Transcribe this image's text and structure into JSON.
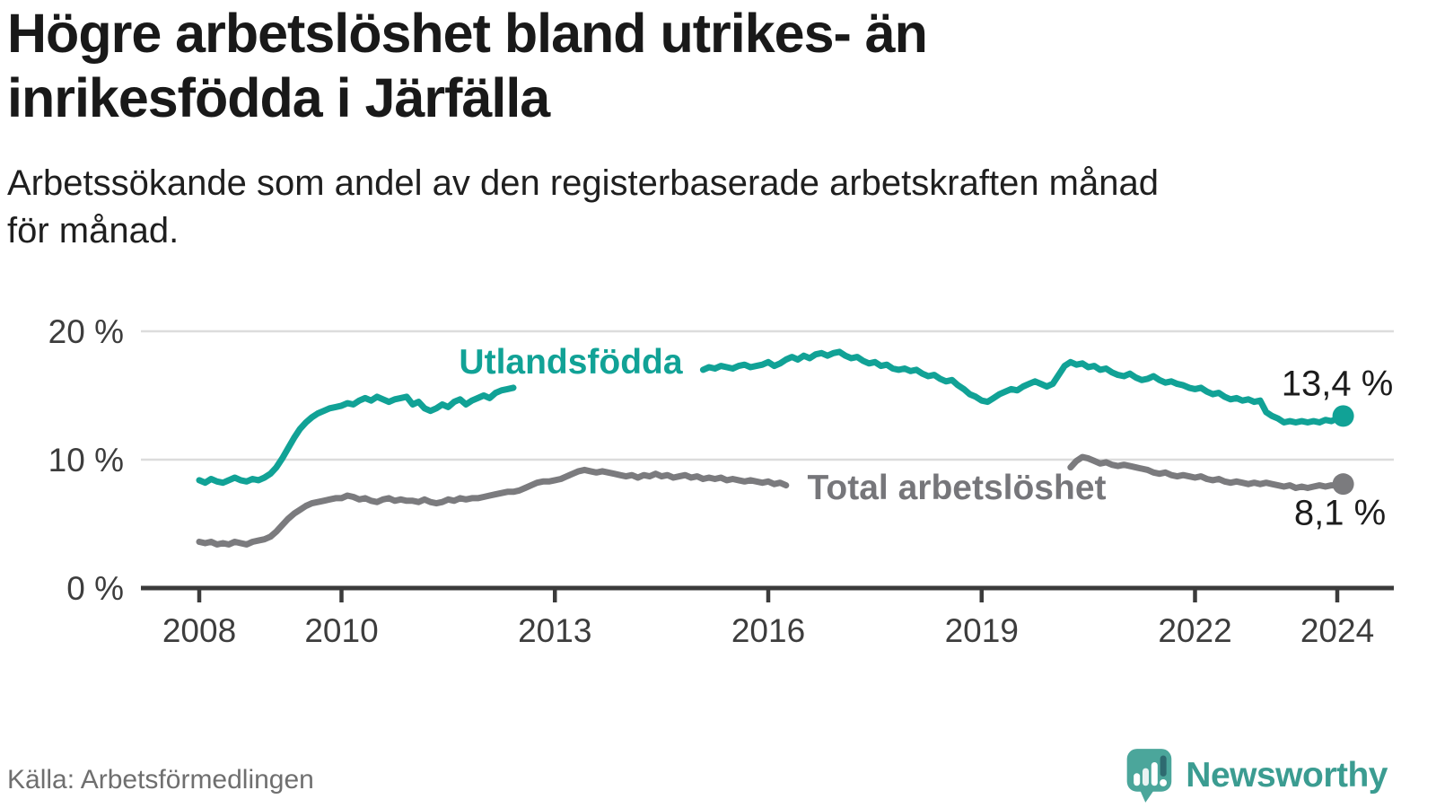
{
  "header": {
    "title": "Högre arbetslöshet bland utrikes- än\ninrikesfödda i Järfälla",
    "subtitle": "Arbetssökande som andel av den registerbaserade arbetskraften månad\nför månad."
  },
  "chart_data": {
    "type": "line",
    "title": "Högre arbetslöshet bland utrikes- än inrikesfödda i Järfälla",
    "subtitle": "Arbetssökande som andel av den registerbaserade arbetskraften månad för månad.",
    "unit": "%",
    "xlabel": "",
    "ylabel": "",
    "xlim": [
      2007.8,
      2024.8
    ],
    "ylim": [
      0,
      21
    ],
    "grid": "horizontal",
    "legend_position": "inline-on-lines",
    "x_ticks": [
      2008,
      2010,
      2013,
      2016,
      2019,
      2022,
      2024
    ],
    "x_tick_labels": [
      "2008",
      "2010",
      "2013",
      "2016",
      "2019",
      "2022",
      "2024"
    ],
    "y_ticks": [
      0,
      10,
      20
    ],
    "y_tick_labels": [
      "0 %",
      "10 %",
      "20 %"
    ],
    "colors": {
      "utlandsfodda": "#11a296",
      "total": "#7b7b7e",
      "gridline": "#dcdcdc",
      "axis": "#3b3b3b",
      "tick_text": "#3d3d3d",
      "end_label_text": "#1c1c1c"
    },
    "series": [
      {
        "name": "Utlandsfödda",
        "color": "#11a296",
        "end_label": "13,4 %",
        "end_value": 13.4,
        "note": "line interrupted mid-2012 to early-2015 by inline series label",
        "segments": [
          {
            "start_year": 2008,
            "start_month": 1,
            "values": [
              8.4,
              8.2,
              8.5,
              8.3,
              8.2,
              8.4,
              8.6,
              8.4,
              8.3,
              8.5,
              8.4,
              8.6,
              8.9,
              9.4,
              10.1,
              10.9,
              11.7,
              12.4,
              12.9,
              13.3,
              13.6,
              13.8,
              14.0,
              14.1,
              14.2,
              14.4,
              14.3,
              14.6,
              14.8,
              14.6,
              14.9,
              14.7,
              14.5,
              14.7,
              14.8,
              14.9,
              14.3,
              14.5,
              14.0,
              13.8,
              14.0,
              14.3,
              14.1,
              14.5,
              14.7,
              14.3,
              14.6,
              14.8,
              15.0,
              14.8,
              15.2,
              15.4,
              15.5,
              15.6
            ]
          },
          {
            "start_year": 2015,
            "start_month": 2,
            "values": [
              17.0,
              17.2,
              17.1,
              17.3,
              17.2,
              17.1,
              17.3,
              17.4,
              17.2,
              17.3,
              17.4,
              17.6,
              17.3,
              17.5,
              17.8,
              18.0,
              17.8,
              18.1,
              17.9,
              18.2,
              18.3,
              18.1,
              18.3,
              18.4,
              18.1,
              17.9,
              18.0,
              17.7,
              17.5,
              17.6,
              17.3,
              17.4,
              17.1,
              17.0,
              17.1,
              16.9,
              17.0,
              16.7,
              16.5,
              16.6,
              16.3,
              16.1,
              16.2,
              15.8,
              15.5,
              15.1,
              14.9,
              14.6,
              14.5,
              14.8,
              15.1,
              15.3,
              15.5,
              15.4,
              15.7,
              15.9,
              16.1,
              15.9,
              15.7,
              15.9,
              16.6,
              17.3,
              17.6,
              17.4,
              17.5,
              17.2,
              17.3,
              17.0,
              17.1,
              16.8,
              16.6,
              16.5,
              16.7,
              16.4,
              16.2,
              16.3,
              16.5,
              16.2,
              16.0,
              16.1,
              15.9,
              15.8,
              15.6,
              15.5,
              15.6,
              15.3,
              15.1,
              15.2,
              14.9,
              14.7,
              14.8,
              14.6,
              14.7,
              14.5,
              14.6,
              13.7,
              13.4,
              13.2,
              12.9,
              13.0,
              12.9,
              13.0,
              12.9,
              13.0,
              12.9,
              13.1,
              13.0,
              13.2,
              13.4
            ]
          }
        ]
      },
      {
        "name": "Total arbetslöshet",
        "color": "#7b7b7e",
        "end_label": "8,1 %",
        "end_value": 8.1,
        "note": "line interrupted early-2016 to spring-2020 by inline series label",
        "segments": [
          {
            "start_year": 2008,
            "start_month": 1,
            "values": [
              3.6,
              3.5,
              3.6,
              3.4,
              3.5,
              3.4,
              3.6,
              3.5,
              3.4,
              3.6,
              3.7,
              3.8,
              4.0,
              4.4,
              4.9,
              5.4,
              5.8,
              6.1,
              6.4,
              6.6,
              6.7,
              6.8,
              6.9,
              7.0,
              7.0,
              7.2,
              7.1,
              6.9,
              7.0,
              6.8,
              6.7,
              6.9,
              7.0,
              6.8,
              6.9,
              6.8,
              6.8,
              6.7,
              6.9,
              6.7,
              6.6,
              6.7,
              6.9,
              6.8,
              7.0,
              6.9,
              7.0,
              7.0,
              7.1,
              7.2,
              7.3,
              7.4,
              7.5,
              7.5,
              7.6,
              7.8,
              8.0,
              8.2,
              8.3,
              8.3,
              8.4,
              8.5,
              8.7,
              8.9,
              9.1,
              9.2,
              9.1,
              9.0,
              9.1,
              9.0,
              8.9,
              8.8,
              8.7,
              8.8,
              8.6,
              8.8,
              8.7,
              8.9,
              8.7,
              8.8,
              8.6,
              8.7,
              8.8,
              8.6,
              8.7,
              8.5,
              8.6,
              8.5,
              8.6,
              8.4,
              8.5,
              8.4,
              8.3,
              8.4,
              8.3,
              8.2,
              8.3,
              8.1,
              8.2,
              8.0
            ]
          },
          {
            "start_year": 2020,
            "start_month": 4,
            "values": [
              9.4,
              9.9,
              10.2,
              10.1,
              9.9,
              9.7,
              9.8,
              9.6,
              9.5,
              9.6,
              9.5,
              9.4,
              9.3,
              9.2,
              9.0,
              8.9,
              9.0,
              8.8,
              8.7,
              8.8,
              8.7,
              8.6,
              8.7,
              8.5,
              8.4,
              8.5,
              8.3,
              8.2,
              8.3,
              8.2,
              8.1,
              8.2,
              8.1,
              8.2,
              8.1,
              8.0,
              7.9,
              8.0,
              7.8,
              7.9,
              7.8,
              7.9,
              8.0,
              7.9,
              8.0,
              8.0,
              8.1
            ]
          }
        ]
      }
    ]
  },
  "footer": {
    "source": "Källa: Arbetsförmedlingen",
    "brand": "Newsworthy"
  }
}
